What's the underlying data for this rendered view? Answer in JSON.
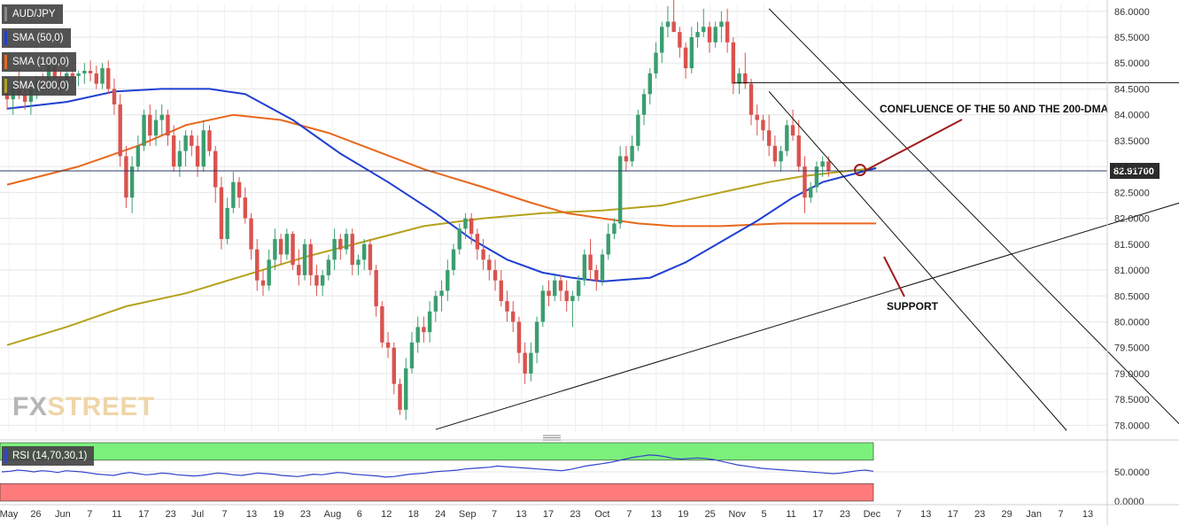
{
  "legend": {
    "symbol": "AUD/JPY",
    "sma50": "SMA (50,0)",
    "sma100": "SMA (100,0)",
    "sma200": "SMA (200,0)",
    "rsi": "RSI (14,70,30,1)"
  },
  "colors": {
    "up": "#3a9e6f",
    "down": "#d9534f",
    "sma50": "#1f3fd1",
    "sma100": "#e8681c",
    "sma200": "#b5a21c",
    "rsi_line": "#3344cc",
    "rsi_over": "#7bf07b",
    "rsi_under": "#ff7b7b",
    "price_box": "#2b2b2b"
  },
  "watermark": {
    "part1": "FX",
    "part2": "STREET"
  },
  "annotations": {
    "confluence": "CONFLUENCE OF THE 50 AND THE 200-DMA",
    "support": "SUPPORT"
  },
  "chart_data": [
    {
      "type": "candlestick",
      "symbol": "AUD/JPY",
      "current_price_label": "82.91700",
      "current_price": 82.917,
      "y_ticks": [
        "86.0000",
        "85.5000",
        "85.0000",
        "84.5000",
        "84.0000",
        "83.5000",
        "83.0000",
        "82.5000",
        "82.0000",
        "81.5000",
        "81.0000",
        "80.5000",
        "80.0000",
        "79.5000",
        "79.0000",
        "78.5000",
        "78.0000"
      ],
      "ylim": [
        77.87,
        86.15
      ],
      "x_ticks": [
        "May",
        "26",
        "Jun",
        "7",
        "11",
        "17",
        "23",
        "Jul",
        "7",
        "13",
        "19",
        "23",
        "Aug",
        "6",
        "12",
        "18",
        "24",
        "Sep",
        "7",
        "13",
        "17",
        "23",
        "Oct",
        "7",
        "13",
        "19",
        "25",
        "Nov",
        "5",
        "11",
        "17",
        "23",
        "Dec",
        "7",
        "13",
        "17",
        "23",
        "29",
        "Jan",
        "7",
        "13"
      ],
      "candles": [
        [
          84.42,
          84.55,
          84.1,
          84.3
        ],
        [
          84.3,
          84.7,
          84.0,
          84.6
        ],
        [
          84.6,
          84.9,
          84.3,
          84.4
        ],
        [
          84.4,
          84.5,
          84.1,
          84.25
        ],
        [
          84.25,
          84.6,
          84.0,
          84.5
        ],
        [
          84.5,
          84.75,
          84.3,
          84.65
        ],
        [
          84.65,
          84.8,
          84.4,
          84.55
        ],
        [
          84.55,
          85.05,
          84.4,
          84.95
        ],
        [
          84.95,
          85.05,
          84.6,
          84.7
        ],
        [
          84.7,
          84.85,
          84.4,
          84.5
        ],
        [
          84.5,
          84.95,
          84.4,
          84.8
        ],
        [
          84.8,
          84.9,
          84.6,
          84.75
        ],
        [
          84.75,
          84.85,
          84.55,
          84.8
        ],
        [
          84.8,
          85.0,
          84.6,
          84.85
        ],
        [
          84.85,
          85.05,
          84.65,
          84.8
        ],
        [
          84.8,
          84.95,
          84.5,
          84.6
        ],
        [
          84.6,
          85.0,
          84.5,
          84.9
        ],
        [
          84.9,
          85.05,
          84.4,
          84.5
        ],
        [
          84.5,
          84.7,
          84.0,
          84.2
        ],
        [
          84.2,
          84.4,
          83.0,
          83.2
        ],
        [
          83.2,
          83.4,
          82.2,
          82.4
        ],
        [
          82.4,
          83.2,
          82.1,
          83.0
        ],
        [
          83.0,
          83.6,
          82.9,
          83.4
        ],
        [
          83.4,
          84.1,
          83.3,
          84.0
        ],
        [
          84.0,
          84.2,
          83.4,
          83.6
        ],
        [
          83.6,
          84.1,
          83.4,
          83.9
        ],
        [
          83.9,
          84.2,
          83.6,
          84.0
        ],
        [
          84.0,
          84.1,
          83.4,
          83.6
        ],
        [
          83.6,
          83.8,
          82.9,
          83.0
        ],
        [
          83.0,
          83.5,
          82.8,
          83.3
        ],
        [
          83.3,
          83.7,
          83.0,
          83.6
        ],
        [
          83.6,
          83.7,
          83.2,
          83.4
        ],
        [
          83.4,
          83.6,
          82.8,
          83.0
        ],
        [
          83.0,
          83.9,
          82.9,
          83.7
        ],
        [
          83.7,
          83.8,
          83.2,
          83.3
        ],
        [
          83.3,
          83.4,
          82.3,
          82.6
        ],
        [
          82.6,
          82.8,
          81.4,
          81.6
        ],
        [
          81.6,
          82.4,
          81.5,
          82.2
        ],
        [
          82.2,
          82.9,
          82.1,
          82.7
        ],
        [
          82.7,
          82.8,
          82.2,
          82.4
        ],
        [
          82.4,
          82.6,
          81.9,
          82.0
        ],
        [
          82.0,
          82.1,
          81.2,
          81.4
        ],
        [
          81.4,
          81.6,
          80.6,
          80.8
        ],
        [
          80.8,
          81.0,
          80.5,
          80.7
        ],
        [
          80.7,
          81.4,
          80.6,
          81.2
        ],
        [
          81.2,
          81.8,
          81.0,
          81.6
        ],
        [
          81.6,
          81.7,
          81.1,
          81.3
        ],
        [
          81.3,
          81.8,
          81.2,
          81.7
        ],
        [
          81.7,
          81.75,
          81.0,
          81.1
        ],
        [
          81.1,
          81.4,
          80.7,
          80.9
        ],
        [
          80.9,
          81.6,
          80.8,
          81.5
        ],
        [
          81.5,
          81.6,
          80.7,
          80.9
        ],
        [
          80.9,
          81.1,
          80.5,
          80.7
        ],
        [
          80.7,
          81.0,
          80.5,
          80.9
        ],
        [
          80.9,
          81.3,
          80.8,
          81.2
        ],
        [
          81.2,
          81.8,
          81.0,
          81.6
        ],
        [
          81.6,
          81.7,
          81.2,
          81.4
        ],
        [
          81.4,
          81.8,
          81.3,
          81.7
        ],
        [
          81.7,
          81.8,
          80.9,
          81.1
        ],
        [
          81.1,
          81.3,
          80.9,
          81.2
        ],
        [
          81.2,
          81.6,
          81.0,
          81.5
        ],
        [
          81.5,
          81.6,
          80.9,
          81.0
        ],
        [
          81.0,
          81.1,
          80.1,
          80.3
        ],
        [
          80.3,
          80.4,
          79.5,
          79.6
        ],
        [
          79.6,
          79.8,
          79.3,
          79.5
        ],
        [
          79.5,
          79.6,
          78.6,
          78.8
        ],
        [
          78.8,
          78.9,
          78.2,
          78.3
        ],
        [
          78.3,
          79.3,
          78.1,
          79.1
        ],
        [
          79.1,
          79.8,
          79.0,
          79.6
        ],
        [
          79.6,
          80.1,
          79.4,
          79.9
        ],
        [
          79.9,
          80.1,
          79.6,
          79.8
        ],
        [
          79.8,
          80.4,
          79.6,
          80.2
        ],
        [
          80.2,
          80.6,
          80.0,
          80.5
        ],
        [
          80.5,
          80.8,
          80.2,
          80.6
        ],
        [
          80.6,
          81.2,
          80.4,
          81.0
        ],
        [
          81.0,
          81.5,
          80.9,
          81.4
        ],
        [
          81.4,
          81.9,
          81.3,
          81.8
        ],
        [
          81.8,
          82.1,
          81.6,
          82.0
        ],
        [
          82.0,
          82.1,
          81.5,
          81.7
        ],
        [
          81.7,
          81.8,
          81.2,
          81.4
        ],
        [
          81.4,
          81.6,
          81.0,
          81.2
        ],
        [
          81.2,
          81.3,
          80.8,
          81.0
        ],
        [
          81.0,
          81.2,
          80.6,
          80.8
        ],
        [
          80.8,
          81.0,
          80.3,
          80.4
        ],
        [
          80.4,
          80.6,
          80.0,
          80.2
        ],
        [
          80.2,
          80.4,
          79.8,
          80.0
        ],
        [
          80.0,
          80.1,
          79.2,
          79.4
        ],
        [
          79.4,
          79.6,
          78.8,
          79.0
        ],
        [
          79.0,
          79.6,
          78.85,
          79.4
        ],
        [
          79.4,
          80.1,
          79.2,
          80.0
        ],
        [
          80.0,
          80.7,
          79.9,
          80.6
        ],
        [
          80.6,
          80.8,
          80.3,
          80.5
        ],
        [
          80.5,
          80.9,
          80.4,
          80.8
        ],
        [
          80.8,
          80.9,
          80.4,
          80.6
        ],
        [
          80.6,
          80.8,
          80.2,
          80.4
        ],
        [
          80.4,
          80.6,
          79.9,
          80.5
        ],
        [
          80.5,
          80.9,
          80.4,
          80.8
        ],
        [
          80.8,
          81.4,
          80.7,
          81.3
        ],
        [
          81.3,
          81.6,
          80.8,
          81.0
        ],
        [
          81.0,
          81.1,
          80.6,
          80.8
        ],
        [
          80.8,
          81.4,
          80.7,
          81.3
        ],
        [
          81.3,
          81.9,
          81.2,
          81.7
        ],
        [
          81.7,
          82.0,
          81.6,
          81.9
        ],
        [
          81.9,
          83.4,
          81.8,
          83.2
        ],
        [
          83.2,
          83.4,
          82.9,
          83.1
        ],
        [
          83.1,
          83.6,
          83.0,
          83.4
        ],
        [
          83.4,
          84.1,
          83.3,
          84.0
        ],
        [
          84.0,
          84.5,
          83.8,
          84.4
        ],
        [
          84.4,
          84.9,
          84.2,
          84.8
        ],
        [
          84.8,
          85.4,
          84.7,
          85.2
        ],
        [
          85.2,
          85.8,
          85.0,
          85.7
        ],
        [
          85.7,
          86.1,
          85.5,
          85.8
        ],
        [
          85.8,
          86.25,
          85.6,
          85.6
        ],
        [
          85.6,
          85.7,
          85.1,
          85.3
        ],
        [
          85.3,
          85.4,
          84.7,
          84.9
        ],
        [
          84.9,
          85.7,
          84.8,
          85.5
        ],
        [
          85.5,
          85.8,
          85.3,
          85.6
        ],
        [
          85.6,
          86.05,
          85.5,
          85.7
        ],
        [
          85.7,
          85.8,
          85.2,
          85.4
        ],
        [
          85.4,
          85.8,
          85.3,
          85.7
        ],
        [
          85.7,
          86.0,
          85.4,
          85.8
        ],
        [
          85.8,
          86.05,
          85.2,
          85.4
        ],
        [
          85.4,
          85.5,
          84.4,
          84.6
        ],
        [
          84.6,
          84.9,
          84.4,
          84.8
        ],
        [
          84.8,
          85.2,
          84.5,
          84.6
        ],
        [
          84.6,
          84.7,
          83.8,
          84.0
        ],
        [
          84.0,
          84.2,
          83.6,
          83.9
        ],
        [
          83.9,
          84.0,
          83.5,
          83.7
        ],
        [
          83.7,
          84.0,
          83.2,
          83.4
        ],
        [
          83.4,
          83.6,
          83.0,
          83.1
        ],
        [
          83.1,
          83.4,
          82.9,
          83.3
        ],
        [
          83.3,
          83.9,
          83.2,
          83.8
        ],
        [
          83.8,
          84.1,
          83.5,
          83.6
        ],
        [
          83.6,
          83.9,
          82.9,
          83.0
        ],
        [
          83.0,
          83.2,
          82.1,
          82.4
        ],
        [
          82.4,
          82.7,
          82.3,
          82.6
        ],
        [
          82.6,
          83.1,
          82.5,
          83.0
        ],
        [
          83.0,
          83.2,
          82.8,
          83.1
        ],
        [
          83.1,
          83.2,
          82.8,
          82.917
        ]
      ],
      "sma50": [
        [
          0,
          84.12
        ],
        [
          10,
          84.25
        ],
        [
          18,
          84.45
        ],
        [
          26,
          84.5
        ],
        [
          34,
          84.5
        ],
        [
          40,
          84.4
        ],
        [
          48,
          83.9
        ],
        [
          56,
          83.25
        ],
        [
          64,
          82.7
        ],
        [
          72,
          82.1
        ],
        [
          78,
          81.6
        ],
        [
          84,
          81.2
        ],
        [
          90,
          80.95
        ],
        [
          95,
          80.85
        ],
        [
          100,
          80.78
        ],
        [
          108,
          80.85
        ],
        [
          114,
          81.15
        ],
        [
          120,
          81.55
        ],
        [
          126,
          81.95
        ],
        [
          132,
          82.4
        ],
        [
          137,
          82.7
        ],
        [
          142,
          82.85
        ],
        [
          146,
          82.97
        ]
      ],
      "sma100": [
        [
          0,
          82.65
        ],
        [
          12,
          83.0
        ],
        [
          22,
          83.4
        ],
        [
          30,
          83.8
        ],
        [
          38,
          84.0
        ],
        [
          46,
          83.9
        ],
        [
          54,
          83.65
        ],
        [
          62,
          83.3
        ],
        [
          70,
          82.95
        ],
        [
          80,
          82.6
        ],
        [
          88,
          82.3
        ],
        [
          94,
          82.1
        ],
        [
          100,
          82.0
        ],
        [
          106,
          81.9
        ],
        [
          112,
          81.85
        ],
        [
          120,
          81.85
        ],
        [
          130,
          81.9
        ],
        [
          138,
          81.9
        ],
        [
          146,
          81.9
        ]
      ],
      "sma200": [
        [
          0,
          79.55
        ],
        [
          10,
          79.9
        ],
        [
          20,
          80.3
        ],
        [
          30,
          80.55
        ],
        [
          40,
          80.9
        ],
        [
          50,
          81.25
        ],
        [
          60,
          81.55
        ],
        [
          70,
          81.85
        ],
        [
          80,
          82.0
        ],
        [
          90,
          82.1
        ],
        [
          100,
          82.15
        ],
        [
          110,
          82.25
        ],
        [
          116,
          82.4
        ],
        [
          122,
          82.55
        ],
        [
          128,
          82.7
        ],
        [
          134,
          82.82
        ],
        [
          140,
          82.9
        ],
        [
          146,
          82.97
        ]
      ],
      "trendlines": [
        {
          "name": "channel-upper",
          "from": [
            128,
            86.05
          ],
          "to": [
            198,
            77.9
          ]
        },
        {
          "name": "channel-lower",
          "from": [
            128,
            84.45
          ],
          "to": [
            178,
            77.9
          ]
        },
        {
          "name": "support",
          "from": [
            72,
            77.92
          ],
          "to": [
            205,
            82.58
          ]
        },
        {
          "name": "resistance-level",
          "from": [
            122,
            84.62
          ],
          "to": [
            214,
            84.62
          ]
        }
      ],
      "grid": true
    },
    {
      "type": "line",
      "name": "RSI (14,70,30,1)",
      "y_ticks": [
        "50.0000",
        "0.0000"
      ],
      "ylim": [
        0,
        100
      ],
      "overbought": 70,
      "oversold": 30,
      "values": [
        50,
        51,
        53,
        52,
        50,
        52,
        51,
        49,
        52,
        51,
        50,
        48,
        46,
        45,
        44,
        47,
        49,
        47,
        45,
        46,
        48,
        47,
        45,
        44,
        43,
        44,
        46,
        48,
        47,
        45,
        44,
        46,
        48,
        47,
        46,
        44,
        43,
        42,
        44,
        46,
        45,
        47,
        49,
        48,
        46,
        45,
        44,
        43,
        41,
        42,
        44,
        46,
        47,
        48,
        50,
        51,
        52,
        53,
        55,
        56,
        57,
        58,
        60,
        59,
        58,
        57,
        56,
        55,
        54,
        53,
        52,
        54,
        57,
        60,
        62,
        64,
        66,
        69,
        72,
        75,
        77,
        79,
        78,
        76,
        73,
        72,
        73,
        74,
        73,
        71,
        68,
        65,
        62,
        60,
        58,
        56,
        55,
        54,
        53,
        52,
        51,
        50,
        49,
        48,
        47,
        48,
        50,
        52,
        53,
        51
      ]
    }
  ]
}
